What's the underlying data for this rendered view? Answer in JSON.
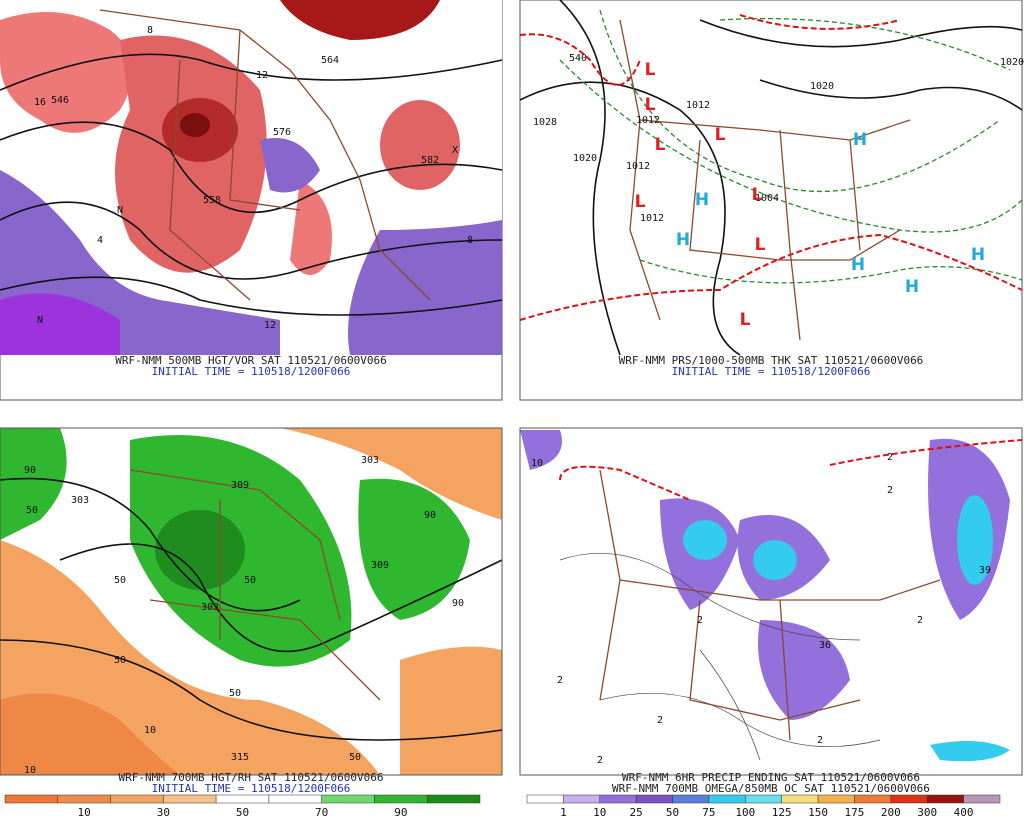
{
  "panels": [
    {
      "captions": [
        "WRF-NMM 500MB HGT/VOR SAT 110521/0600V066",
        "INITIAL TIME = 110518/1200F066"
      ],
      "labels": [
        "576",
        "558",
        "546",
        "564",
        "582",
        "8",
        "12",
        "16",
        "4",
        "8",
        "12",
        "N",
        "X",
        "N"
      ]
    },
    {
      "captions": [
        "WRF-NMM PRS/1000-500MB THK SAT 110521/0600V066",
        "INITIAL TIME = 110518/1200F066"
      ],
      "labels": [
        "1028",
        "1020",
        "1012",
        "1012",
        "1012",
        "1020",
        "1004",
        "540",
        "1020",
        "1012"
      ],
      "lows": [
        "L",
        "L",
        "L",
        "L",
        "L",
        "L",
        "L",
        "L"
      ],
      "highs": [
        "H",
        "H",
        "H",
        "H",
        "H",
        "H"
      ]
    },
    {
      "captions": [
        "WRF-NMM 700MB HGT/RH SAT 110521/0600V066",
        "INITIAL TIME = 110518/1200F066"
      ],
      "labels": [
        "90",
        "50",
        "303",
        "50",
        "50",
        "309",
        "303",
        "50",
        "50",
        "309",
        "90",
        "90",
        "10",
        "315",
        "50",
        "10",
        "303"
      ],
      "colorbar": [
        10,
        30,
        50,
        70,
        90
      ]
    },
    {
      "captions": [
        "WRF-NMM 6HR PRECIP ENDING SAT 110521/0600V066",
        "WRF-NMM 700MB OMEGA/850MB OC SAT 110521/0600V066"
      ],
      "labels": [
        "10",
        "2",
        "2",
        "2",
        "2",
        "36",
        "39",
        "2",
        "2",
        "2",
        "2"
      ],
      "colorbar": [
        1,
        10,
        25,
        50,
        75,
        100,
        125,
        150,
        175,
        200,
        300,
        400
      ]
    }
  ]
}
